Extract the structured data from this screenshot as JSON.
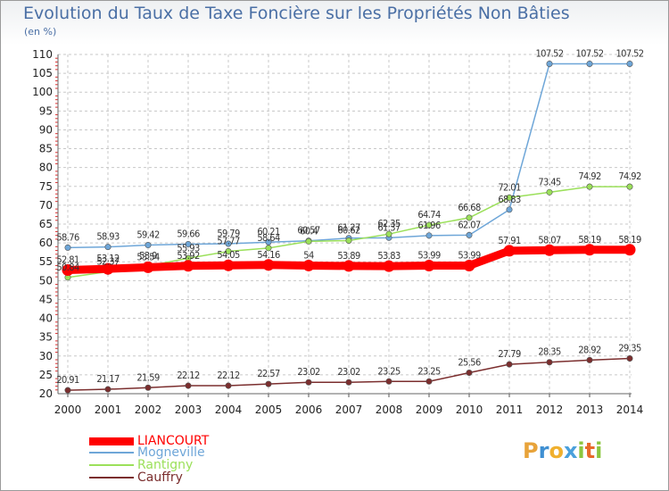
{
  "chart_data": {
    "type": "line",
    "title": "Evolution du Taux de Taxe Foncière sur les Propriétés Non Bâties",
    "ylabel": "(en %)",
    "xlabel": "",
    "ylim": [
      20,
      110
    ],
    "yticks": [
      20,
      25,
      30,
      35,
      40,
      45,
      50,
      55,
      60,
      65,
      70,
      75,
      80,
      85,
      90,
      95,
      100,
      105,
      110
    ],
    "categories": [
      "2000",
      "2001",
      "2002",
      "2003",
      "2004",
      "2005",
      "2006",
      "2007",
      "2008",
      "2009",
      "2010",
      "2011",
      "2012",
      "2013",
      "2014"
    ],
    "series": [
      {
        "name": "LIANCOURT",
        "color": "#ff0000",
        "values": [
          52.81,
          53.12,
          53.54,
          53.92,
          54.05,
          54.16,
          54,
          53.89,
          53.83,
          53.99,
          53.99,
          57.91,
          58.07,
          58.19,
          58.19
        ],
        "labels": [
          "52.81",
          "53.12",
          "53.54",
          "53.92",
          "54.05",
          "54.16",
          "54",
          "53.89",
          "53.83",
          "53.99",
          "53.99",
          "57.91",
          "58.07",
          "58.19",
          "58.19"
        ]
      },
      {
        "name": "Mogneville",
        "color": "#6ea6d8",
        "values": [
          58.76,
          58.93,
          59.42,
          59.66,
          59.79,
          60.21,
          60.57,
          61.27,
          61.37,
          61.96,
          62.07,
          68.83,
          107.52,
          107.52,
          107.52
        ],
        "labels": [
          "58.76",
          "58.93",
          "59.42",
          "59.66",
          "59.79",
          "60.21",
          "60.57",
          "61.27",
          "61.37",
          "61.96",
          "62.07",
          "68.83",
          "107.52",
          "107.52",
          "107.52"
        ]
      },
      {
        "name": "Rantigny",
        "color": "#9be05a",
        "values": [
          50.84,
          52.37,
          53.9,
          55.93,
          57.77,
          58.64,
          60.4,
          60.62,
          62.35,
          64.74,
          66.68,
          72.01,
          73.45,
          74.92,
          74.92
        ],
        "labels": [
          "50.84",
          "52.37",
          "53.9",
          "55.93",
          "57.77",
          "58.64",
          "60.4",
          "60.62",
          "62.35",
          "64.74",
          "66.68",
          "72.01",
          "73.45",
          "74.92",
          "74.92"
        ]
      },
      {
        "name": "Cauffry",
        "color": "#7b2e2e",
        "values": [
          20.91,
          21.17,
          21.59,
          22.12,
          22.12,
          22.57,
          23.02,
          23.02,
          23.25,
          23.25,
          25.56,
          27.79,
          28.35,
          28.92,
          29.35
        ],
        "labels": [
          "20.91",
          "21.17",
          "21.59",
          "22.12",
          "22.12",
          "22.57",
          "23.02",
          "23.02",
          "23.25",
          "23.25",
          "25.56",
          "27.79",
          "28.35",
          "28.92",
          "29.35"
        ]
      }
    ],
    "legend": "bottom-left"
  },
  "logo": {
    "letters": [
      "P",
      "r",
      "o",
      "x",
      "i",
      "t",
      "i"
    ],
    "colors": [
      "#e8a33a",
      "#3f8fd2",
      "#f0b02e",
      "#4aa0dc",
      "#8cc63f",
      "#e86a2a",
      "#8cc63f"
    ],
    "text": "Proxiti"
  }
}
